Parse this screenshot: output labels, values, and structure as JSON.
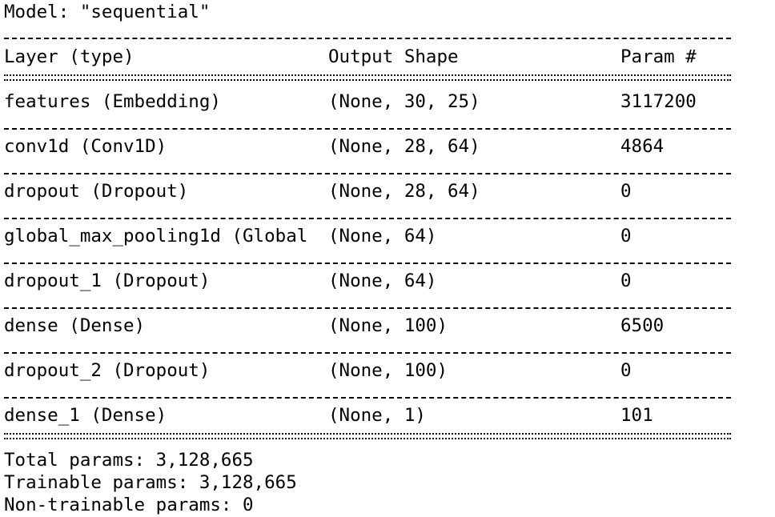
{
  "model_title": "Model: \"sequential\"",
  "header": {
    "layer": "Layer (type)",
    "output_shape": "Output Shape",
    "params": "Param #"
  },
  "rows": [
    {
      "layer": "features (Embedding)",
      "shape": "(None, 30, 25)",
      "params": "3117200"
    },
    {
      "layer": "conv1d (Conv1D)",
      "shape": "(None, 28, 64)",
      "params": "4864"
    },
    {
      "layer": "dropout (Dropout)",
      "shape": "(None, 28, 64)",
      "params": "0"
    },
    {
      "layer": "global_max_pooling1d (Global",
      "shape": "(None, 64)",
      "params": "0"
    },
    {
      "layer": "dropout_1 (Dropout)",
      "shape": "(None, 64)",
      "params": "0"
    },
    {
      "layer": "dense (Dense)",
      "shape": "(None, 100)",
      "params": "6500"
    },
    {
      "layer": "dropout_2 (Dropout)",
      "shape": "(None, 100)",
      "params": "0"
    },
    {
      "layer": "dense_1 (Dense)",
      "shape": "(None, 1)",
      "params": "101"
    }
  ],
  "totals": {
    "total": "Total params: 3,128,665",
    "trainable": "Trainable params: 3,128,665",
    "non_trainable": "Non-trainable params: 0"
  }
}
